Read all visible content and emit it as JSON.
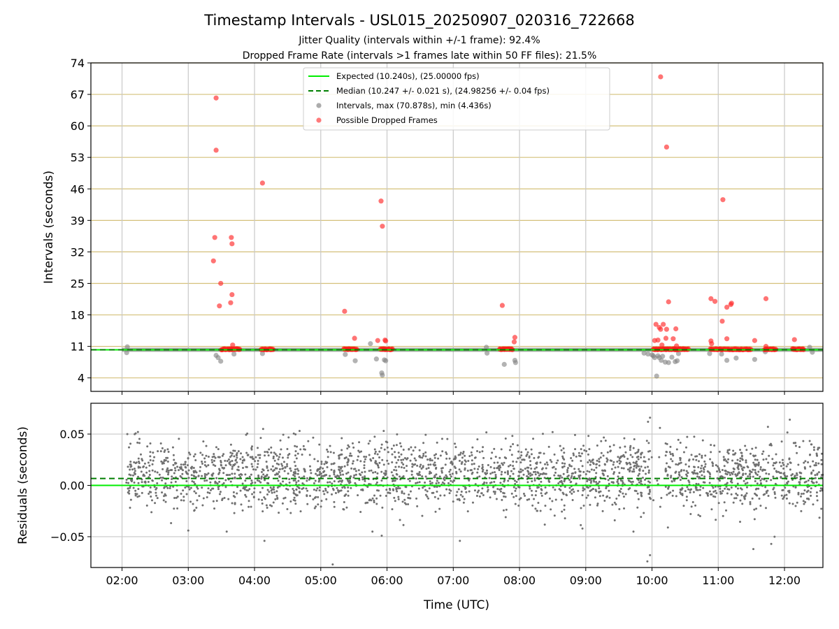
{
  "chart_data": [
    {
      "type": "scatter",
      "panel": "intervals",
      "title": "Timestamp Intervals - USL015_20250907_020316_722668",
      "subtitle_lines": [
        "Jitter Quality (intervals within +/-1 frame): 92.4%",
        "Dropped Frame Rate (intervals >1 frames late within 50 FF files): 21.5%"
      ],
      "xlabel": "",
      "ylabel": "Intervals (seconds)",
      "xlim": [
        1.53,
        12.58
      ],
      "ylim": [
        1.0,
        74.0
      ],
      "yticks": [
        4,
        11,
        18,
        25,
        32,
        39,
        46,
        53,
        60,
        67,
        74
      ],
      "xticks": [
        2,
        3,
        4,
        5,
        6,
        7,
        8,
        9,
        10,
        11,
        12
      ],
      "xtick_labels": [
        "02:00",
        "03:00",
        "04:00",
        "05:00",
        "06:00",
        "07:00",
        "08:00",
        "09:00",
        "10:00",
        "11:00",
        "12:00"
      ],
      "grid": true,
      "legend_position": "top-center",
      "expected_interval": 10.24,
      "median_interval": 10.247,
      "normal_band": [
        9.8,
        10.7
      ],
      "legend": [
        {
          "label": "Expected (10.240s), (25.00000 fps)",
          "style": "solid-line",
          "color": "#00ee00"
        },
        {
          "label": "Median (10.247 +/- 0.021 s), (24.98256 +/- 0.04 fps)",
          "style": "dashed-line",
          "color": "#007f00"
        },
        {
          "label": "Intervals, max (70.878s), min (4.436s)",
          "style": "marker",
          "color": "#808080"
        },
        {
          "label": "Possible Dropped Frames",
          "style": "marker",
          "color": "#ff3333"
        }
      ],
      "series": [
        {
          "name": "Possible Dropped Frames",
          "color": "#ff3333",
          "points": [
            [
              3.42,
              66.2
            ],
            [
              3.42,
              54.6
            ],
            [
              3.4,
              35.2
            ],
            [
              3.38,
              30.0
            ],
            [
              3.49,
              25.0
            ],
            [
              3.47,
              20.0
            ],
            [
              3.65,
              35.2
            ],
            [
              3.66,
              33.8
            ],
            [
              3.66,
              22.5
            ],
            [
              3.64,
              20.7
            ],
            [
              3.67,
              11.3
            ],
            [
              4.12,
              47.3
            ],
            [
              5.36,
              18.8
            ],
            [
              5.51,
              12.8
            ],
            [
              5.91,
              43.3
            ],
            [
              5.93,
              37.7
            ],
            [
              5.86,
              12.3
            ],
            [
              5.97,
              12.4
            ],
            [
              5.98,
              12.2
            ],
            [
              7.74,
              20.1
            ],
            [
              7.93,
              13.0
            ],
            [
              7.92,
              12.0
            ],
            [
              10.13,
              70.9
            ],
            [
              10.22,
              55.3
            ],
            [
              10.06,
              15.9
            ],
            [
              10.11,
              15.2
            ],
            [
              10.13,
              14.8
            ],
            [
              10.17,
              15.9
            ],
            [
              10.22,
              14.8
            ],
            [
              10.25,
              20.9
            ],
            [
              10.36,
              14.9
            ],
            [
              10.04,
              12.3
            ],
            [
              10.09,
              12.4
            ],
            [
              10.21,
              12.8
            ],
            [
              10.32,
              12.7
            ],
            [
              10.15,
              11.3
            ],
            [
              10.37,
              11.1
            ],
            [
              11.07,
              43.6
            ],
            [
              10.89,
              21.6
            ],
            [
              10.95,
              21.0
            ],
            [
              11.06,
              16.6
            ],
            [
              11.13,
              19.7
            ],
            [
              11.19,
              20.3
            ],
            [
              11.2,
              20.6
            ],
            [
              11.72,
              21.6
            ],
            [
              10.89,
              12.2
            ],
            [
              10.9,
              11.6
            ],
            [
              11.13,
              12.7
            ],
            [
              11.55,
              12.3
            ],
            [
              12.15,
              12.5
            ],
            [
              11.72,
              11.0
            ]
          ],
          "dense_runs": [
            [
              3.5,
              3.78
            ],
            [
              4.1,
              4.28
            ],
            [
              5.35,
              5.55
            ],
            [
              5.9,
              6.08
            ],
            [
              7.7,
              7.9
            ],
            [
              10.02,
              10.55
            ],
            [
              10.88,
              11.5
            ],
            [
              11.7,
              11.88
            ],
            [
              12.12,
              12.3
            ]
          ]
        },
        {
          "name": "Intervals",
          "color": "#808080",
          "points": [
            [
              2.08,
              10.9
            ],
            [
              2.07,
              9.6
            ],
            [
              3.42,
              9.0
            ],
            [
              3.45,
              8.5
            ],
            [
              3.49,
              7.7
            ],
            [
              3.69,
              9.3
            ],
            [
              4.12,
              9.4
            ],
            [
              5.37,
              9.2
            ],
            [
              5.52,
              7.8
            ],
            [
              5.75,
              11.6
            ],
            [
              5.84,
              8.2
            ],
            [
              5.92,
              5.1
            ],
            [
              5.93,
              4.6
            ],
            [
              5.96,
              8.0
            ],
            [
              5.98,
              7.8
            ],
            [
              7.5,
              10.8
            ],
            [
              7.51,
              9.5
            ],
            [
              7.77,
              7.0
            ],
            [
              7.93,
              7.9
            ],
            [
              7.94,
              7.4
            ],
            [
              9.88,
              9.5
            ],
            [
              9.94,
              9.3
            ],
            [
              10.0,
              9.1
            ],
            [
              10.02,
              8.9
            ],
            [
              10.04,
              8.5
            ],
            [
              10.07,
              4.4
            ],
            [
              10.09,
              8.9
            ],
            [
              10.11,
              8.5
            ],
            [
              10.14,
              7.9
            ],
            [
              10.16,
              8.8
            ],
            [
              10.2,
              7.5
            ],
            [
              10.25,
              7.4
            ],
            [
              10.3,
              8.6
            ],
            [
              10.35,
              7.6
            ],
            [
              10.38,
              7.8
            ],
            [
              10.4,
              9.4
            ],
            [
              10.87,
              9.4
            ],
            [
              11.05,
              9.3
            ],
            [
              11.13,
              7.9
            ],
            [
              11.27,
              8.4
            ],
            [
              11.55,
              8.1
            ],
            [
              11.71,
              9.8
            ],
            [
              12.42,
              9.7
            ],
            [
              12.38,
              10.8
            ]
          ]
        }
      ]
    },
    {
      "type": "scatter",
      "panel": "residuals",
      "title": "",
      "xlabel": "Time (UTC)",
      "ylabel": "Residuals (seconds)",
      "xlim": [
        1.53,
        12.58
      ],
      "ylim": [
        -0.08,
        0.08
      ],
      "yticks": [
        0.05,
        0.0,
        -0.05
      ],
      "ytick_labels": [
        "0.05",
        "0.00",
        "−0.05"
      ],
      "xticks": [
        2,
        3,
        4,
        5,
        6,
        7,
        8,
        9,
        10,
        11,
        12
      ],
      "xtick_labels": [
        "02:00",
        "03:00",
        "04:00",
        "05:00",
        "06:00",
        "07:00",
        "08:00",
        "09:00",
        "10:00",
        "11:00",
        "12:00"
      ],
      "grid": true,
      "expected_residual": 0.0,
      "median_residual": 0.0067,
      "series": [
        {
          "name": "Residuals",
          "color": "#707070",
          "x_range": [
            2.05,
            12.58
          ],
          "gaps": [
            [
              9.98,
              10.2
            ]
          ],
          "count": 2600,
          "spread": 0.017,
          "clusters": [
            0.0,
            0.02
          ],
          "outliers": [
            [
              2.08,
              0.05
            ],
            [
              2.24,
              0.052
            ],
            [
              3.0,
              -0.044
            ],
            [
              3.58,
              -0.045
            ],
            [
              4.13,
              0.055
            ],
            [
              4.15,
              -0.054
            ],
            [
              4.68,
              0.053
            ],
            [
              5.18,
              -0.077
            ],
            [
              5.78,
              -0.045
            ],
            [
              5.92,
              -0.049
            ],
            [
              5.95,
              0.053
            ],
            [
              7.1,
              -0.054
            ],
            [
              8.95,
              -0.042
            ],
            [
              9.72,
              -0.045
            ],
            [
              9.93,
              -0.074
            ],
            [
              9.97,
              -0.068
            ],
            [
              9.97,
              0.066
            ],
            [
              10.24,
              -0.041
            ],
            [
              11.53,
              -0.062
            ],
            [
              11.8,
              -0.057
            ],
            [
              11.85,
              -0.05
            ],
            [
              12.08,
              0.064
            ],
            [
              11.75,
              0.057
            ],
            [
              10.12,
              0.056
            ],
            [
              9.94,
              0.062
            ]
          ]
        }
      ]
    }
  ]
}
